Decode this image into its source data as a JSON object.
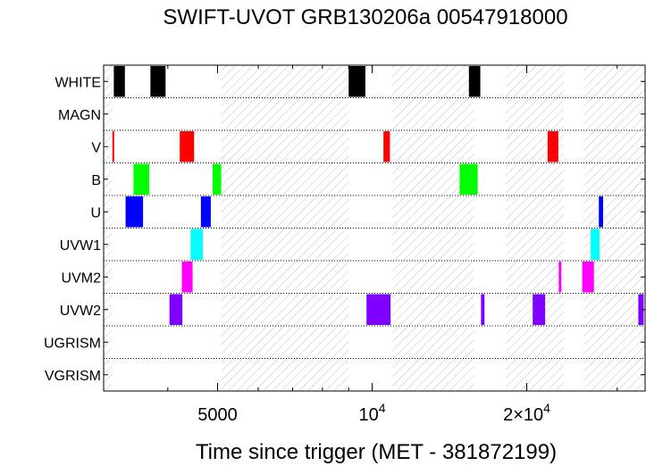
{
  "chart_data": {
    "type": "timeline",
    "title": "SWIFT-UVOT GRB130206a 00547918000",
    "xlabel": "Time since trigger (MET - 381872199)",
    "x_scale": "log",
    "xlim": [
      3000,
      34000
    ],
    "x_ticks": [
      {
        "value": 5000,
        "label": "5000",
        "sup": ""
      },
      {
        "value": 10000,
        "label": "10",
        "sup": "4"
      },
      {
        "value": 20000,
        "label": "2×10",
        "sup": "4"
      }
    ],
    "filters": [
      "WHITE",
      "MAGN",
      "V",
      "B",
      "U",
      "UVW1",
      "UVM2",
      "UVW2",
      "UGRISM",
      "VGRISM"
    ],
    "gap_intervals": [
      [
        3000,
        3110
      ],
      [
        5080,
        9000
      ],
      [
        10950,
        15800
      ],
      [
        18200,
        23600
      ],
      [
        25800,
        34000
      ]
    ],
    "exposures": [
      {
        "filter": "WHITE",
        "color": "#000000",
        "intervals": [
          [
            3140,
            3300
          ],
          [
            3700,
            3960
          ],
          [
            9000,
            9700
          ],
          [
            15430,
            16240
          ]
        ]
      },
      {
        "filter": "V",
        "color": "#ff0000",
        "intervals": [
          [
            3120,
            3140
          ],
          [
            4220,
            4500
          ],
          [
            10520,
            10830
          ],
          [
            21960,
            23040
          ]
        ]
      },
      {
        "filter": "B",
        "color": "#00ff00",
        "intervals": [
          [
            3430,
            3680
          ],
          [
            4890,
            5080
          ],
          [
            14800,
            16050
          ]
        ]
      },
      {
        "filter": "U",
        "color": "#0000ff",
        "intervals": [
          [
            3310,
            3580
          ],
          [
            4640,
            4850
          ],
          [
            27630,
            28160
          ]
        ]
      },
      {
        "filter": "UVW1",
        "color": "#00ffff",
        "intervals": [
          [
            4430,
            4680
          ],
          [
            26640,
            27720
          ]
        ]
      },
      {
        "filter": "UVM2",
        "color": "#ff00ff",
        "intervals": [
          [
            4260,
            4470
          ],
          [
            23080,
            23360
          ],
          [
            25640,
            27030
          ]
        ]
      },
      {
        "filter": "UVW2",
        "color": "#7f00ff",
        "intervals": [
          [
            4030,
            4270
          ],
          [
            9750,
            10860
          ],
          [
            16290,
            16550
          ],
          [
            20540,
            21720
          ],
          [
            32980,
            33780
          ]
        ]
      }
    ],
    "colors": {
      "gap_hatch": "#c0c0c0",
      "row_separator": "#000000",
      "background": "#ffffff"
    }
  }
}
